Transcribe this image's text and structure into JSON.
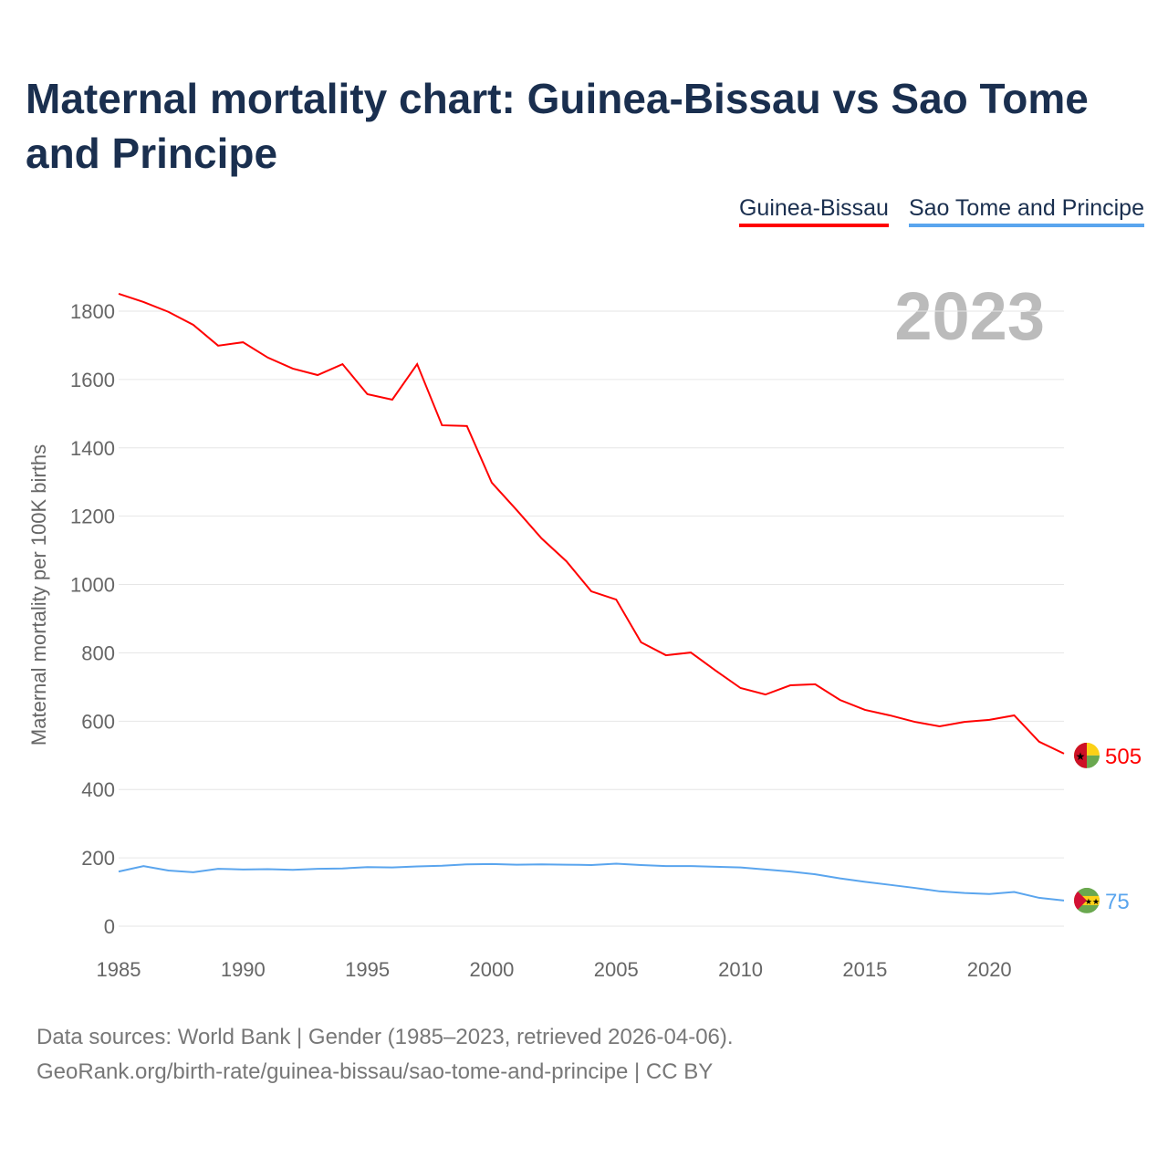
{
  "title": "Maternal mortality chart: Guinea-Bissau vs Sao Tome and Principe",
  "footer": {
    "line1": "Data sources: World Bank | Gender (1985–2023, retrieved 2026-04-06).",
    "line2": "GeoRank.org/birth-rate/guinea-bissau/sao-tome-and-principe | CC BY"
  },
  "chart_data": {
    "type": "line",
    "title": "Maternal mortality chart: Guinea-Bissau vs Sao Tome and Principe",
    "ylabel": "Maternal mortality per 100K births",
    "xlabel": "",
    "year_label": "2023",
    "xlim": [
      1985,
      2023
    ],
    "ylim": [
      0,
      1900
    ],
    "xticks": [
      1985,
      1990,
      1995,
      2000,
      2005,
      2010,
      2015,
      2020
    ],
    "yticks": [
      0,
      200,
      400,
      600,
      800,
      1000,
      1200,
      1400,
      1600,
      1800
    ],
    "legend_position": "top-right",
    "x": [
      1985,
      1986,
      1987,
      1988,
      1989,
      1990,
      1991,
      1992,
      1993,
      1994,
      1995,
      1996,
      1997,
      1998,
      1999,
      2000,
      2001,
      2002,
      2003,
      2004,
      2005,
      2006,
      2007,
      2008,
      2009,
      2010,
      2011,
      2012,
      2013,
      2014,
      2015,
      2016,
      2017,
      2018,
      2019,
      2020,
      2021,
      2022,
      2023
    ],
    "series": [
      {
        "name": "Guinea-Bissau",
        "color": "#ff0000",
        "end_label": "505",
        "values": [
          1851,
          1827,
          1798,
          1760,
          1699,
          1709,
          1664,
          1632,
          1613,
          1645,
          1557,
          1541,
          1645,
          1466,
          1464,
          1298,
          1218,
          1135,
          1068,
          980,
          956,
          831,
          793,
          801,
          748,
          697,
          678,
          705,
          708,
          662,
          633,
          617,
          598,
          585,
          598,
          604,
          617,
          540,
          505
        ]
      },
      {
        "name": "Sao Tome and Principe",
        "color": "#5aa5ee",
        "end_label": "75",
        "values": [
          160,
          176,
          163,
          158,
          168,
          166,
          167,
          165,
          168,
          169,
          173,
          172,
          175,
          177,
          181,
          182,
          180,
          181,
          180,
          179,
          183,
          179,
          176,
          176,
          174,
          172,
          166,
          160,
          152,
          140,
          130,
          121,
          112,
          102,
          97,
          94,
          100,
          83,
          75
        ]
      }
    ]
  }
}
